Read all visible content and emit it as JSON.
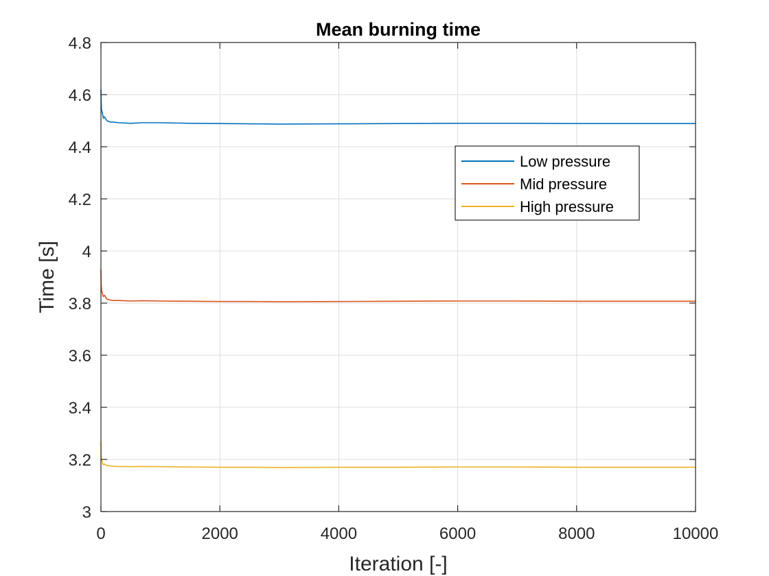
{
  "chart_data": {
    "type": "line",
    "title": "Mean burning time",
    "xlabel": "Iteration [-]",
    "ylabel": "Time [s]",
    "xlim": [
      0,
      10000
    ],
    "ylim": [
      3,
      4.8
    ],
    "xticks": [
      0,
      2000,
      4000,
      6000,
      8000,
      10000
    ],
    "xtick_labels": [
      "0",
      "2000",
      "4000",
      "6000",
      "8000",
      "10000"
    ],
    "yticks": [
      3,
      3.2,
      3.4,
      3.6,
      3.8,
      4,
      4.2,
      4.4,
      4.6,
      4.8
    ],
    "ytick_labels": [
      "3",
      "3.2",
      "3.4",
      "3.6",
      "3.8",
      "4",
      "4.2",
      "4.4",
      "4.6",
      "4.8"
    ],
    "grid": true,
    "legend_position": "upper-right",
    "series": [
      {
        "name": "Low pressure",
        "color": "#0072BD",
        "x": [
          0,
          5,
          10,
          20,
          40,
          60,
          100,
          150,
          200,
          300,
          500,
          700,
          1000,
          1500,
          2000,
          2500,
          3000,
          4000,
          5000,
          6000,
          7000,
          8000,
          9000,
          10000
        ],
        "y": [
          4.62,
          4.57,
          4.54,
          4.535,
          4.51,
          4.515,
          4.5,
          4.495,
          4.495,
          4.492,
          4.49,
          4.492,
          4.492,
          4.49,
          4.489,
          4.488,
          4.487,
          4.488,
          4.489,
          4.49,
          4.49,
          4.489,
          4.489,
          4.489
        ]
      },
      {
        "name": "Mid pressure",
        "color": "#D95319",
        "x": [
          0,
          5,
          10,
          20,
          40,
          60,
          100,
          150,
          200,
          300,
          500,
          700,
          1000,
          1500,
          2000,
          2500,
          3000,
          4000,
          5000,
          6000,
          7000,
          8000,
          9000,
          10000
        ],
        "y": [
          3.93,
          3.87,
          3.85,
          3.84,
          3.825,
          3.83,
          3.815,
          3.812,
          3.81,
          3.81,
          3.808,
          3.809,
          3.808,
          3.807,
          3.806,
          3.806,
          3.805,
          3.806,
          3.807,
          3.808,
          3.808,
          3.807,
          3.807,
          3.807
        ]
      },
      {
        "name": "High pressure",
        "color": "#EDB120",
        "x": [
          0,
          5,
          10,
          20,
          40,
          60,
          100,
          150,
          200,
          300,
          500,
          700,
          1000,
          1500,
          2000,
          2500,
          3000,
          4000,
          5000,
          6000,
          7000,
          8000,
          9000,
          10000
        ],
        "y": [
          3.27,
          3.22,
          3.2,
          3.19,
          3.18,
          3.182,
          3.176,
          3.175,
          3.174,
          3.173,
          3.172,
          3.173,
          3.172,
          3.171,
          3.17,
          3.17,
          3.169,
          3.17,
          3.17,
          3.171,
          3.171,
          3.17,
          3.17,
          3.17
        ]
      }
    ]
  }
}
